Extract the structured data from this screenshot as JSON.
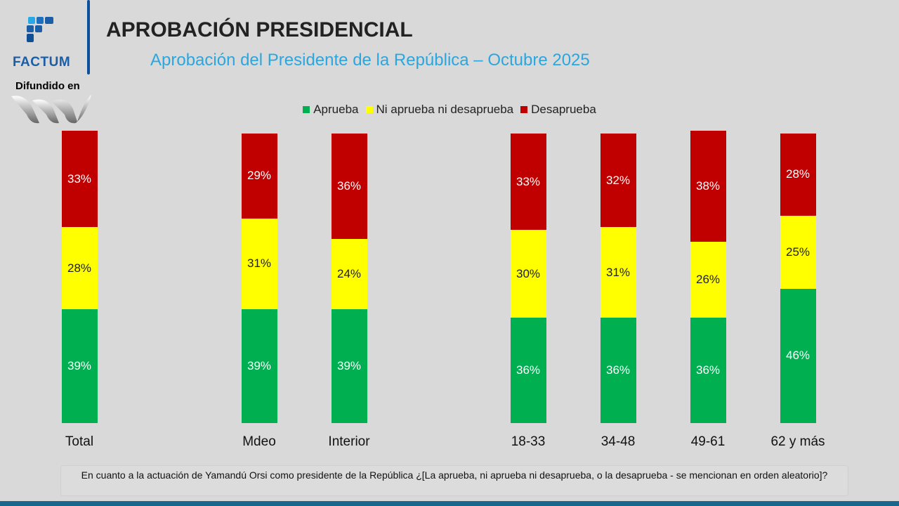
{
  "header": {
    "brand": "FACTUM",
    "title": "APROBACIÓN PRESIDENCIAL",
    "subtitle": "Aprobación del Presidente de la República – Octubre 2025",
    "difundido": "Difundido en"
  },
  "footer": {
    "note": "En cuanto a la actuación de Yamandú Orsi como presidente de la República ¿[La aprueba, ni aprueba ni desaprueba, o la desaprueba - se mencionan en orden aleatorio]?"
  },
  "chart_data": {
    "type": "bar",
    "stacked": true,
    "title": "Aprobación del Presidente de la República – Octubre 2025",
    "categories": [
      "Total",
      "Mdeo",
      "Interior",
      "18-33",
      "34-48",
      "49-61",
      "62 y más"
    ],
    "series": [
      {
        "name": "Aprueba",
        "color": "#00b050",
        "values": [
          39,
          39,
          39,
          36,
          36,
          36,
          46
        ]
      },
      {
        "name": "Ni aprueba ni desaprueba",
        "color": "#ffff00",
        "values": [
          28,
          31,
          24,
          30,
          31,
          26,
          25
        ]
      },
      {
        "name": "Desaprueba",
        "color": "#c00000",
        "values": [
          33,
          29,
          36,
          33,
          32,
          38,
          28
        ]
      }
    ],
    "legend": "top-center",
    "ylim": [
      0,
      100
    ],
    "unit": "%"
  }
}
